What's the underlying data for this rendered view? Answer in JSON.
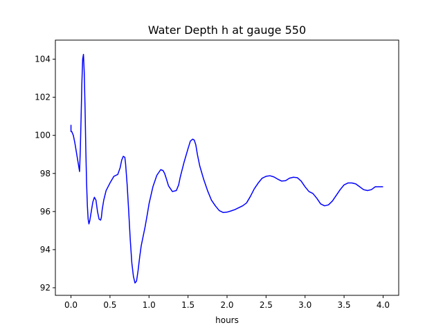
{
  "chart_data": {
    "type": "line",
    "title": "Water Depth h at gauge 550",
    "xlabel": "hours",
    "ylabel": "",
    "xlim": [
      -0.2,
      4.2
    ],
    "ylim": [
      91.6,
      105.0
    ],
    "xticks": [
      0.0,
      0.5,
      1.0,
      1.5,
      2.0,
      2.5,
      3.0,
      3.5,
      4.0
    ],
    "xtick_labels": [
      "0.0",
      "0.5",
      "1.0",
      "1.5",
      "2.0",
      "2.5",
      "3.0",
      "3.5",
      "4.0"
    ],
    "yticks": [
      92,
      94,
      96,
      98,
      100,
      102,
      104
    ],
    "ytick_labels": [
      "92",
      "94",
      "96",
      "98",
      "100",
      "102",
      "104"
    ],
    "grid": false,
    "series": [
      {
        "color": "#0000ff",
        "x": [
          0.0,
          0.0,
          0.01,
          0.03,
          0.05,
          0.07,
          0.09,
          0.11,
          0.12,
          0.13,
          0.14,
          0.15,
          0.16,
          0.17,
          0.18,
          0.19,
          0.2,
          0.21,
          0.22,
          0.23,
          0.24,
          0.26,
          0.28,
          0.3,
          0.32,
          0.34,
          0.36,
          0.38,
          0.39,
          0.4,
          0.42,
          0.45,
          0.5,
          0.55,
          0.6,
          0.63,
          0.65,
          0.67,
          0.69,
          0.7,
          0.72,
          0.74,
          0.76,
          0.78,
          0.8,
          0.82,
          0.84,
          0.86,
          0.88,
          0.9,
          0.92,
          0.95,
          0.98,
          1.0,
          1.05,
          1.1,
          1.15,
          1.18,
          1.2,
          1.22,
          1.25,
          1.3,
          1.35,
          1.38,
          1.4,
          1.45,
          1.5,
          1.53,
          1.56,
          1.58,
          1.6,
          1.62,
          1.65,
          1.7,
          1.75,
          1.8,
          1.85,
          1.9,
          1.95,
          2.0,
          2.05,
          2.1,
          2.15,
          2.2,
          2.25,
          2.3,
          2.35,
          2.4,
          2.45,
          2.5,
          2.55,
          2.6,
          2.65,
          2.7,
          2.75,
          2.8,
          2.85,
          2.9,
          2.95,
          3.0,
          3.05,
          3.1,
          3.15,
          3.2,
          3.25,
          3.3,
          3.35,
          3.4,
          3.45,
          3.5,
          3.55,
          3.6,
          3.65,
          3.7,
          3.75,
          3.8,
          3.85,
          3.9,
          3.95,
          4.0
        ],
        "y": [
          100.55,
          100.2,
          100.2,
          100.0,
          99.6,
          99.1,
          98.6,
          98.1,
          99.3,
          101.0,
          102.8,
          104.0,
          104.25,
          103.3,
          101.5,
          99.3,
          97.5,
          96.3,
          95.6,
          95.35,
          95.5,
          96.0,
          96.5,
          96.75,
          96.6,
          96.0,
          95.6,
          95.55,
          95.7,
          96.1,
          96.6,
          97.1,
          97.5,
          97.85,
          97.95,
          98.3,
          98.7,
          98.9,
          98.85,
          98.5,
          97.4,
          96.0,
          94.5,
          93.3,
          92.6,
          92.25,
          92.35,
          92.9,
          93.6,
          94.2,
          94.6,
          95.2,
          95.9,
          96.4,
          97.3,
          97.9,
          98.2,
          98.15,
          98.0,
          97.75,
          97.35,
          97.05,
          97.1,
          97.4,
          97.8,
          98.6,
          99.3,
          99.7,
          99.8,
          99.75,
          99.5,
          99.0,
          98.4,
          97.7,
          97.1,
          96.6,
          96.3,
          96.05,
          95.95,
          95.97,
          96.03,
          96.1,
          96.2,
          96.3,
          96.45,
          96.8,
          97.2,
          97.5,
          97.75,
          97.85,
          97.88,
          97.82,
          97.7,
          97.6,
          97.62,
          97.75,
          97.8,
          97.78,
          97.6,
          97.3,
          97.05,
          96.95,
          96.7,
          96.4,
          96.3,
          96.35,
          96.55,
          96.85,
          97.15,
          97.4,
          97.5,
          97.5,
          97.45,
          97.3,
          97.15,
          97.1,
          97.15,
          97.3,
          97.3,
          97.3
        ]
      }
    ]
  }
}
